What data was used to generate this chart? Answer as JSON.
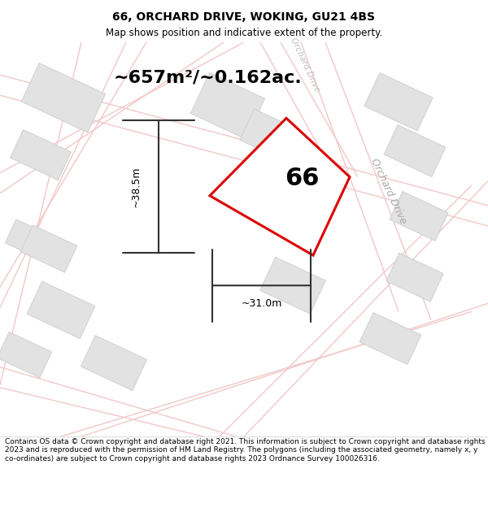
{
  "title": "66, ORCHARD DRIVE, WOKING, GU21 4BS",
  "subtitle": "Map shows position and indicative extent of the property.",
  "area_text": "~657m²/~0.162ac.",
  "number_label": "66",
  "dim_width": "~31.0m",
  "dim_height": "~38.5m",
  "footer_text": "Contains OS data © Crown copyright and database right 2021. This information is subject to Crown copyright and database rights 2023 and is reproduced with the permission of HM Land Registry. The polygons (including the associated geometry, namely x, y co-ordinates) are subject to Crown copyright and database rights 2023 Ordnance Survey 100026316.",
  "bg_color": "#ffffff",
  "road_color": "#f2c8c8",
  "building_color": "#e0e0e0",
  "building_edge": "#cccccc",
  "property_color": "#dd0000",
  "street_label_right": "Orchard Drive",
  "street_label_top": "Orchard Drive",
  "title_fontsize": 10,
  "subtitle_fontsize": 8.5,
  "area_fontsize": 16,
  "number_fontsize": 22,
  "dim_fontsize": 9,
  "street_fontsize": 9,
  "footer_fontsize": 6.5
}
